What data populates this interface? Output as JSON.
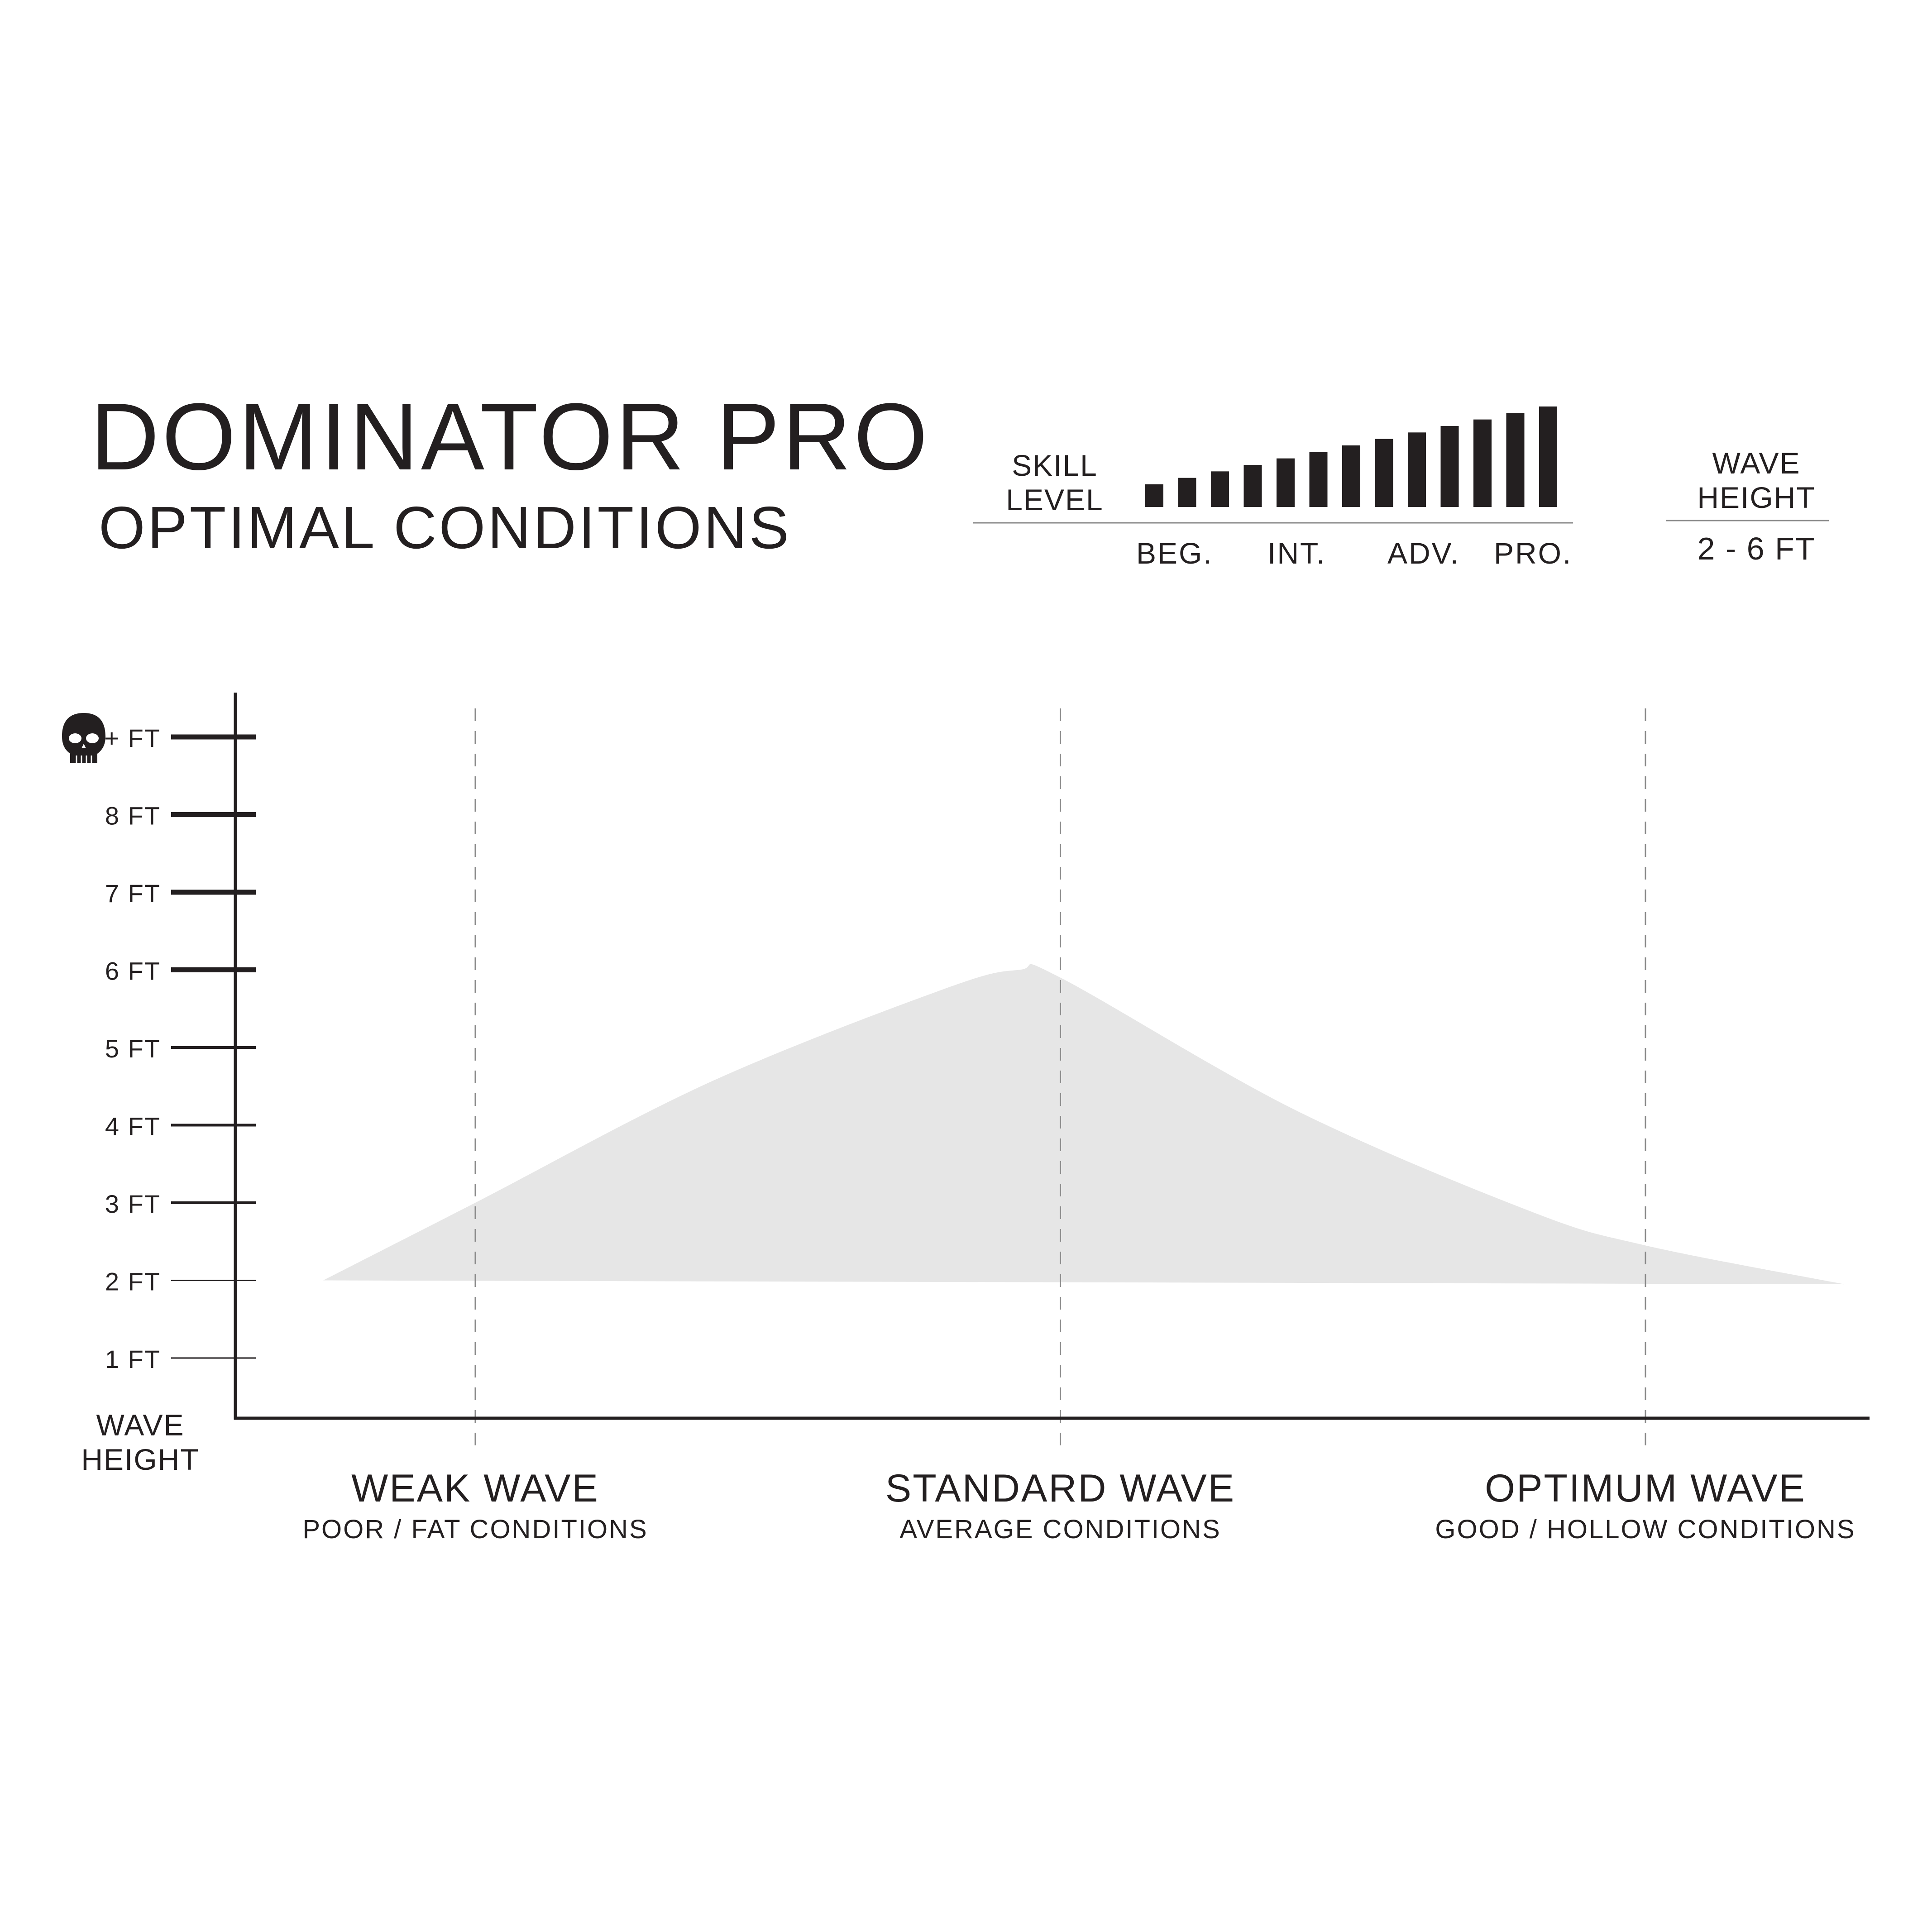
{
  "header": {
    "title": "DOMINATOR PRO",
    "subtitle": "OPTIMAL CONDITIONS"
  },
  "skill": {
    "label_line1": "SKILL",
    "label_line2": "LEVEL",
    "bar_count": 13,
    "highlighted_bars": 13,
    "levels": [
      "BEG.",
      "INT.",
      "ADV.",
      "PRO."
    ]
  },
  "wave_height_range": {
    "label_line1": "WAVE",
    "label_line2": "HEIGHT",
    "value": "2 - 6 FT"
  },
  "colors": {
    "ink": "#231f20",
    "area_fill": "#e6e6e6",
    "guide_line": "#8a8a8a",
    "background": "#ffffff"
  },
  "chart_data": {
    "type": "area",
    "title": "DOMINATOR PRO",
    "subtitle": "OPTIMAL CONDITIONS",
    "ylabel_line1": "WAVE",
    "ylabel_line2": "HEIGHT",
    "y_ticks": [
      {
        "value": 1,
        "label": "1 FT"
      },
      {
        "value": 2,
        "label": "2 FT"
      },
      {
        "value": 3,
        "label": "3 FT"
      },
      {
        "value": 4,
        "label": "4 FT"
      },
      {
        "value": 5,
        "label": "5 FT"
      },
      {
        "value": 6,
        "label": "6 FT"
      },
      {
        "value": 7,
        "label": "7 FT"
      },
      {
        "value": 8,
        "label": "8 FT"
      },
      {
        "value": 9,
        "label": "+ FT",
        "icon": "skull-icon"
      }
    ],
    "ylim": [
      0.2,
      9.4
    ],
    "xlim": [
      0,
      2.8
    ],
    "categories": [
      {
        "name": "WEAK WAVE",
        "sub": "POOR / FAT CONDITIONS",
        "x": 0
      },
      {
        "name": "STANDARD WAVE",
        "sub": "AVERAGE CONDITIONS",
        "x": 1
      },
      {
        "name": "OPTIMUM WAVE",
        "sub": "GOOD / HOLLOW CONDITIONS",
        "x": 2
      }
    ],
    "series": [
      {
        "baseline": [
          [
            -0.26,
            2.0
          ],
          [
            2.34,
            1.95
          ]
        ],
        "upper": [
          [
            -0.26,
            2.0
          ],
          [
            0.0,
            3.0
          ],
          [
            0.4,
            4.55
          ],
          [
            0.8,
            5.75
          ],
          [
            0.93,
            6.0
          ],
          [
            1.0,
            5.9
          ],
          [
            1.4,
            4.2
          ],
          [
            1.8,
            2.9
          ],
          [
            2.0,
            2.45
          ],
          [
            2.34,
            1.95
          ]
        ]
      }
    ],
    "grid": false
  }
}
